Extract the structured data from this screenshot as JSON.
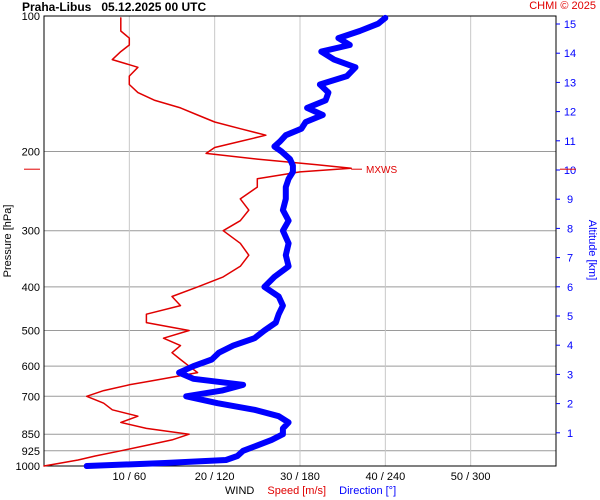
{
  "title": {
    "station": "Praha-Libus",
    "datetime": "05.12.2025 00 UTC"
  },
  "credit": "CHMI © 2025",
  "chart_data": {
    "type": "line",
    "title": "Praha-Libus   05.12.2025 00 UTC",
    "y_left": {
      "label": "Pressure [hPa]",
      "scale": "log",
      "reversed": true,
      "range": [
        1000,
        100
      ],
      "ticks": [
        100,
        200,
        300,
        400,
        500,
        600,
        700,
        850,
        925,
        1000
      ]
    },
    "y_right": {
      "label": "Altitude [km]",
      "ticks": [
        1,
        2,
        3,
        4,
        5,
        6,
        7,
        8,
        9,
        10,
        11,
        12,
        13,
        14,
        15
      ]
    },
    "x": {
      "label_parts": [
        "WIND",
        "Speed [m/s]",
        "Direction [°]"
      ],
      "range_speed": [
        0,
        60
      ],
      "range_direction": [
        0,
        360
      ],
      "tick_labels": [
        "10 / 60",
        "20 / 120",
        "30 / 180",
        "40 / 240",
        "50 / 300"
      ]
    },
    "grid": true,
    "annotation": {
      "text": "MXWS",
      "pressure": 219,
      "speed": 36
    },
    "series": [
      {
        "name": "Speed [m/s]",
        "unit": "m/s",
        "color": "#e00000",
        "pressure": [
          1000,
          985,
          970,
          950,
          925,
          900,
          875,
          850,
          825,
          800,
          775,
          750,
          725,
          700,
          680,
          660,
          640,
          620,
          600,
          580,
          560,
          540,
          520,
          500,
          480,
          460,
          440,
          420,
          400,
          380,
          360,
          340,
          320,
          300,
          285,
          270,
          255,
          240,
          230,
          222,
          218,
          214,
          208,
          202,
          196,
          190,
          184,
          178,
          172,
          166,
          160,
          154,
          148,
          142,
          136,
          130,
          125,
          120,
          116,
          112,
          108,
          104,
          101
        ],
        "values": [
          0,
          2,
          4,
          6,
          9,
          12,
          15,
          17,
          12,
          9,
          11,
          8,
          7,
          5,
          7,
          10,
          14,
          18,
          17,
          16,
          15,
          16,
          14,
          17,
          12,
          12,
          16,
          15,
          18,
          21,
          23,
          24,
          23,
          21,
          23,
          24,
          23,
          25,
          25,
          30,
          36,
          32,
          25,
          19,
          20,
          23,
          26,
          23,
          20,
          18,
          16,
          13,
          11,
          10,
          10,
          11,
          8,
          9,
          10,
          10,
          9,
          9,
          9
        ]
      },
      {
        "name": "Direction [°]",
        "unit": "°",
        "color": "#0000ff",
        "pressure": [
          1000,
          985,
          970,
          950,
          925,
          900,
          875,
          850,
          825,
          800,
          775,
          750,
          725,
          700,
          680,
          660,
          640,
          620,
          600,
          580,
          560,
          540,
          520,
          500,
          480,
          460,
          440,
          420,
          400,
          380,
          360,
          340,
          320,
          300,
          285,
          270,
          255,
          240,
          230,
          222,
          215,
          208,
          200,
          195,
          190,
          184,
          178,
          172,
          166,
          160,
          154,
          148,
          142,
          136,
          130,
          125,
          120,
          116,
          112,
          108,
          104,
          101
        ],
        "values": [
          30,
          85,
          128,
          136,
          140,
          150,
          160,
          168,
          168,
          172,
          165,
          148,
          122,
          100,
          125,
          140,
          105,
          95,
          105,
          118,
          123,
          133,
          148,
          155,
          163,
          165,
          168,
          165,
          155,
          162,
          172,
          170,
          172,
          168,
          172,
          168,
          170,
          170,
          172,
          175,
          175,
          173,
          167,
          162,
          166,
          170,
          181,
          184,
          196,
          185,
          198,
          200,
          194,
          213,
          219,
          204,
          195,
          215,
          207,
          222,
          235,
          240
        ]
      }
    ]
  }
}
